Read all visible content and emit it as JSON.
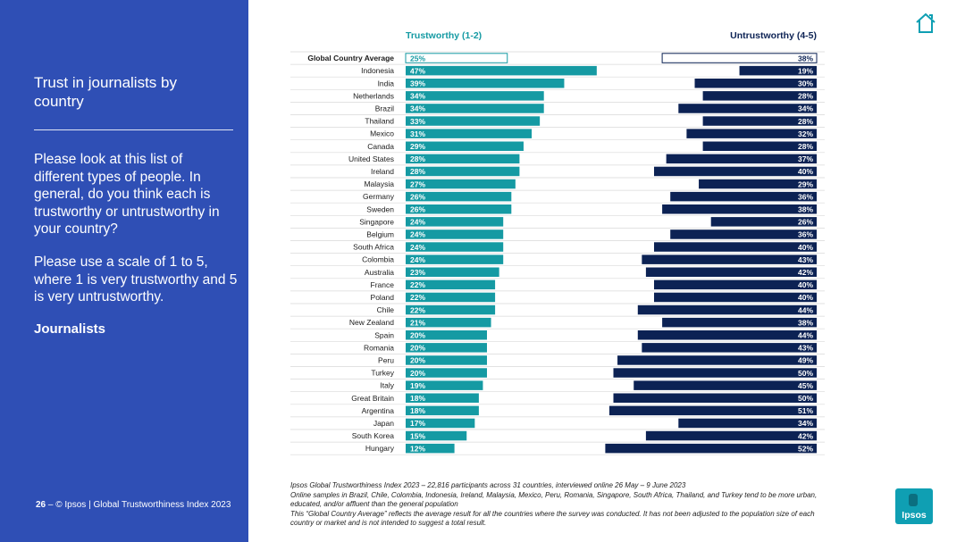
{
  "sidebar": {
    "title": "Trust in journalists by country",
    "question": "Please look at this list of different types of people. In general, do you think each is trustworthy or untrustworthy in your country?",
    "scale_note": "Please use a scale of 1 to 5, where 1 is very trustworthy and 5 is very untrustworthy.",
    "topic": "Journalists",
    "page_number": "26",
    "footer": "– © Ipsos | Global Trustworthiness Index 2023"
  },
  "icons": {
    "home": "home-icon",
    "logo": "ipsos-logo"
  },
  "logo_text": "Ipsos",
  "notes": [
    "Ipsos Global Trustworthiness Index 2023 – 22,816 participants across 31 countries, interviewed online 26 May – 9 June 2023",
    "Online samples in Brazil, Chile, Colombia, Indonesia, Ireland, Malaysia, Mexico, Peru, Romania, Singapore, South Africa, Thailand, and Turkey tend to be more urban, educated, and/or affluent than the general population",
    "This “Global Country Average” reflects the average result for all the countries where the survey was conducted. It has not been adjusted to the population size of each country or market and is not intended to suggest a total result."
  ],
  "colors": {
    "sidebar": "#2f4fb5",
    "trust": "#159aa3",
    "untrust": "#0c2254",
    "logo": "#0f9fb3"
  },
  "chart_data": {
    "type": "bar",
    "orientation": "horizontal",
    "value_suffix": "%",
    "series": [
      {
        "name": "Trustworthy (1-2)",
        "color": "#159aa3",
        "values": [
          25,
          47,
          39,
          34,
          34,
          33,
          31,
          29,
          28,
          28,
          27,
          26,
          26,
          24,
          24,
          24,
          24,
          23,
          22,
          22,
          22,
          21,
          20,
          20,
          20,
          20,
          19,
          18,
          18,
          17,
          15,
          12
        ]
      },
      {
        "name": "Untrustworthy (4-5)",
        "color": "#0c2254",
        "values": [
          38,
          19,
          30,
          28,
          34,
          28,
          32,
          28,
          37,
          40,
          29,
          36,
          38,
          26,
          36,
          40,
          43,
          42,
          40,
          40,
          44,
          38,
          44,
          43,
          49,
          50,
          45,
          50,
          51,
          34,
          42,
          52
        ]
      }
    ],
    "categories": [
      "Global Country Average",
      "Indonesia",
      "India",
      "Netherlands",
      "Brazil",
      "Thailand",
      "Mexico",
      "Canada",
      "United States",
      "Ireland",
      "Malaysia",
      "Germany",
      "Sweden",
      "Singapore",
      "Belgium",
      "South Africa",
      "Colombia",
      "Australia",
      "France",
      "Poland",
      "Chile",
      "New Zealand",
      "Spain",
      "Romania",
      "Peru",
      "Turkey",
      "Italy",
      "Great Britain",
      "Argentina",
      "Japan",
      "South Korea",
      "Hungary"
    ],
    "highlight_category": "Global Country Average"
  }
}
